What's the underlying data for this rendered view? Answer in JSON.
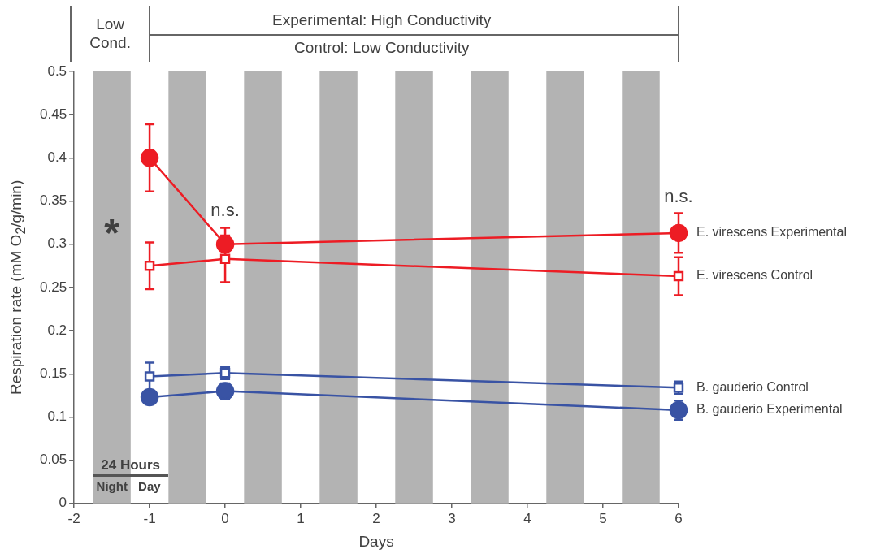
{
  "chart_data": {
    "type": "line",
    "xlabel": "Days",
    "ylabel": "Respiration rate (mM O$_{2}$/g/min)",
    "xlim": [
      -2,
      6
    ],
    "xticks": [
      -2,
      -1,
      0,
      1,
      2,
      3,
      4,
      5,
      6
    ],
    "ylim": [
      0,
      0.5
    ],
    "yticks": [
      0,
      0.05,
      0.1,
      0.15,
      0.2,
      0.25,
      0.3,
      0.35,
      0.4,
      0.45,
      0.5
    ],
    "grid": false,
    "line_style": "solid",
    "series": [
      {
        "name": "E. virescens Experimental",
        "color": "#ed1c24",
        "marker": "circle",
        "x": [
          -1,
          0,
          6
        ],
        "values": [
          0.4,
          0.3,
          0.313
        ],
        "errors": [
          0.039,
          0.019,
          0.023
        ]
      },
      {
        "name": "E. virescens Control",
        "color": "#ed1c24",
        "marker": "square",
        "x": [
          -1,
          0,
          6
        ],
        "values": [
          0.275,
          0.283,
          0.263
        ],
        "errors": [
          0.027,
          0.027,
          0.022
        ]
      },
      {
        "name": "B. gauderio Control",
        "color": "#3953a4",
        "marker": "square",
        "x": [
          -1,
          0,
          6
        ],
        "values": [
          0.147,
          0.151,
          0.134
        ],
        "errors": [
          0.016,
          0.007,
          0.007
        ]
      },
      {
        "name": "B. gauderio Experimental",
        "color": "#3953a4",
        "marker": "circle",
        "x": [
          -1,
          0,
          6
        ],
        "values": [
          0.123,
          0.13,
          0.108
        ],
        "errors": [
          0.008,
          0.009,
          0.011
        ]
      }
    ],
    "bands": [
      {
        "axis": "x",
        "from": -1.75,
        "to": -1.25,
        "color": "#b3b3b3"
      },
      {
        "axis": "x",
        "from": -0.75,
        "to": -0.25,
        "color": "#b3b3b3"
      },
      {
        "axis": "x",
        "from": 0.25,
        "to": 0.75,
        "color": "#b3b3b3"
      },
      {
        "axis": "x",
        "from": 1.25,
        "to": 1.75,
        "color": "#b3b3b3"
      },
      {
        "axis": "x",
        "from": 2.25,
        "to": 2.75,
        "color": "#b3b3b3"
      },
      {
        "axis": "x",
        "from": 3.25,
        "to": 3.75,
        "color": "#b3b3b3"
      },
      {
        "axis": "x",
        "from": 4.25,
        "to": 4.75,
        "color": "#b3b3b3"
      },
      {
        "axis": "x",
        "from": 5.25,
        "to": 5.75,
        "color": "#b3b3b3"
      }
    ],
    "annotations": [
      "Low Cond.",
      "Experimental: High Conductivity",
      "Control: Low Conductivity",
      "24 Hours",
      "Night",
      "Day",
      "*",
      "n.s.",
      "n.s."
    ]
  }
}
